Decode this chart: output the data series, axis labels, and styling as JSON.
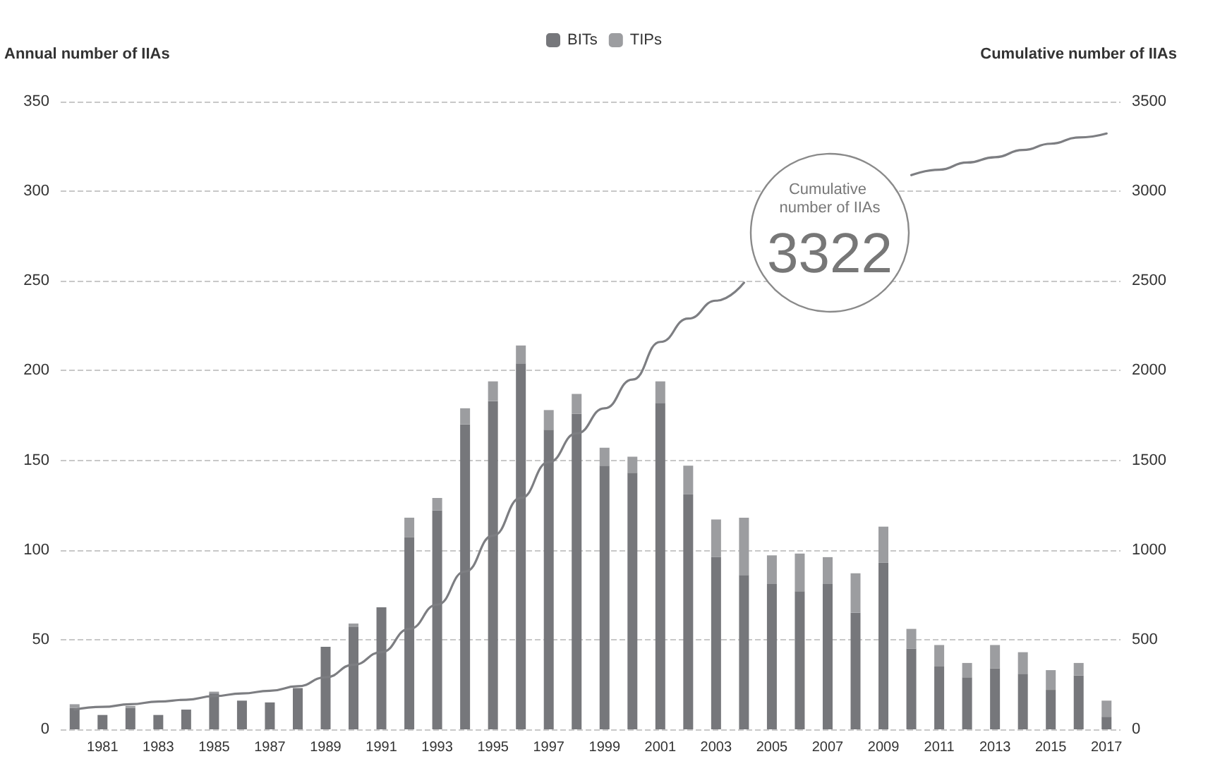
{
  "chart_data": {
    "type": "bar",
    "stacked": true,
    "categories": [
      null,
      "1981",
      null,
      "1983",
      null,
      "1985",
      null,
      "1987",
      null,
      "1989",
      null,
      "1991",
      null,
      "1993",
      null,
      "1995",
      null,
      "1997",
      null,
      "1999",
      null,
      "2001",
      null,
      "2003",
      null,
      "2005",
      null,
      "2007",
      null,
      "2009",
      null,
      "2011",
      null,
      "2013",
      null,
      "2015",
      null,
      "2017"
    ],
    "ylabel": "Annual number of IIAs",
    "y2label": "Cumulative number of IIAs",
    "ylim": [
      0,
      350
    ],
    "yticks": [
      0,
      50,
      100,
      150,
      200,
      250,
      300,
      350
    ],
    "y2lim": [
      0,
      3500
    ],
    "y2ticks": [
      0,
      500,
      1000,
      1500,
      2000,
      2500,
      3000,
      3500
    ],
    "grid": "y",
    "legend": "top",
    "annotations": [
      "Cumulative number of IIAs",
      "3322"
    ],
    "series": [
      {
        "name": "BITs",
        "color": "#76777b",
        "values": [
          12,
          8,
          12,
          8,
          11,
          20,
          16,
          15,
          23,
          46,
          57,
          68,
          107,
          122,
          170,
          183,
          204,
          167,
          176,
          147,
          143,
          182,
          131,
          96,
          86,
          81,
          77,
          81,
          65,
          93,
          45,
          35,
          29,
          34,
          31,
          22,
          30,
          7
        ]
      },
      {
        "name": "TIPs",
        "color": "#9c9da0",
        "values": [
          2,
          0,
          1,
          0,
          0,
          1,
          0,
          0,
          0,
          0,
          2,
          0,
          11,
          7,
          9,
          11,
          10,
          11,
          11,
          10,
          9,
          12,
          16,
          21,
          32,
          16,
          21,
          15,
          22,
          20,
          11,
          12,
          8,
          13,
          12,
          11,
          7,
          9
        ]
      },
      {
        "type": "line",
        "axis": "y2",
        "color": "#7d7e82",
        "marker": "none",
        "values": [
          110,
          125,
          140,
          155,
          165,
          185,
          200,
          215,
          240,
          290,
          360,
          430,
          560,
          695,
          880,
          1080,
          1290,
          1490,
          1650,
          1790,
          1950,
          2160,
          2290,
          2390,
          2490,
          null,
          null,
          null,
          null,
          null,
          3090,
          3120,
          3160,
          3190,
          3230,
          3265,
          3300,
          3322
        ]
      }
    ]
  }
}
